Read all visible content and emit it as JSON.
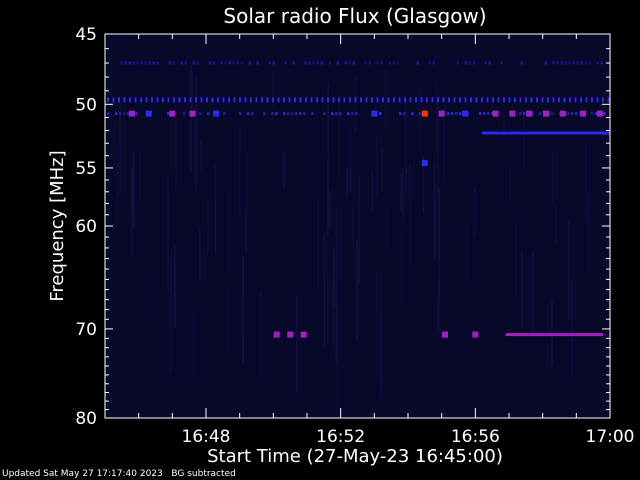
{
  "chart_data": {
    "type": "heatmap",
    "title": "Solar radio Flux (Glasgow)",
    "xlabel": "Start Time (27-May-23 16:45:00)",
    "ylabel": "Frequency [MHz]",
    "x_ticks": [
      "16:48",
      "16:52",
      "16:56",
      "17:00"
    ],
    "x_tick_minutes": [
      48,
      52,
      56,
      60
    ],
    "xlim_minutes": [
      45,
      60
    ],
    "y_ticks": [
      45,
      50,
      55,
      60,
      70,
      80
    ],
    "ylim": [
      45,
      80
    ],
    "y_scale": "log",
    "background_color": "#08082a",
    "colors": {
      "weak": "#1a1aa0",
      "medium": "#2a2af0",
      "strong": "#a020c0",
      "peak": "#ff3010"
    },
    "bands": [
      {
        "freq": 47,
        "start": 45.4,
        "end": 60,
        "intensity": "weak",
        "pattern": "intermittent"
      },
      {
        "freq": 49.7,
        "start": 45.0,
        "end": 60,
        "intensity": "medium",
        "pattern": "dotted"
      },
      {
        "freq": 50.7,
        "start": 45.0,
        "end": 60,
        "intensity": "medium",
        "pattern": "intermittent"
      },
      {
        "freq": 52.2,
        "start": 56.2,
        "end": 60,
        "intensity": "medium",
        "pattern": "continuous"
      },
      {
        "freq": 70.6,
        "start": 56.9,
        "end": 59.8,
        "intensity": "strong",
        "pattern": "continuous"
      }
    ],
    "hotspots": [
      {
        "minute": 45.8,
        "freq": 50.7,
        "intensity": "strong"
      },
      {
        "minute": 46.3,
        "freq": 50.7,
        "intensity": "medium"
      },
      {
        "minute": 47.0,
        "freq": 50.7,
        "intensity": "strong"
      },
      {
        "minute": 47.6,
        "freq": 50.7,
        "intensity": "strong"
      },
      {
        "minute": 48.3,
        "freq": 50.7,
        "intensity": "medium"
      },
      {
        "minute": 53.0,
        "freq": 50.7,
        "intensity": "medium"
      },
      {
        "minute": 54.5,
        "freq": 50.7,
        "intensity": "peak"
      },
      {
        "minute": 55.0,
        "freq": 50.7,
        "intensity": "strong"
      },
      {
        "minute": 55.7,
        "freq": 50.7,
        "intensity": "medium"
      },
      {
        "minute": 56.6,
        "freq": 50.7,
        "intensity": "strong"
      },
      {
        "minute": 57.1,
        "freq": 50.7,
        "intensity": "strong"
      },
      {
        "minute": 57.6,
        "freq": 50.7,
        "intensity": "strong"
      },
      {
        "minute": 58.1,
        "freq": 50.7,
        "intensity": "strong"
      },
      {
        "minute": 58.6,
        "freq": 50.7,
        "intensity": "strong"
      },
      {
        "minute": 59.2,
        "freq": 50.7,
        "intensity": "strong"
      },
      {
        "minute": 59.7,
        "freq": 50.7,
        "intensity": "strong"
      },
      {
        "minute": 50.1,
        "freq": 70.6,
        "intensity": "strong"
      },
      {
        "minute": 50.5,
        "freq": 70.6,
        "intensity": "strong"
      },
      {
        "minute": 50.9,
        "freq": 70.6,
        "intensity": "strong"
      },
      {
        "minute": 55.1,
        "freq": 70.6,
        "intensity": "strong"
      },
      {
        "minute": 55.1,
        "freq": 70.6,
        "intensity": "strong"
      },
      {
        "minute": 56.0,
        "freq": 70.6,
        "intensity": "strong"
      },
      {
        "minute": 54.5,
        "freq": 54.6,
        "intensity": "medium"
      }
    ]
  },
  "footer": {
    "updated": "Updated Sat May 27 17:17:40 2023",
    "note": "BG subtracted"
  }
}
